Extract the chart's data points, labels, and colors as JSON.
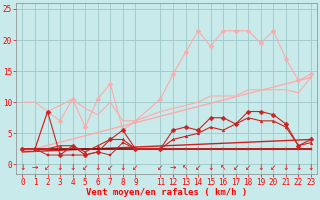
{
  "background_color": "#c8eaea",
  "grid_color": "#a0c8c8",
  "xlabel": "Vent moyen/en rafales ( km/h )",
  "ylabel_ticks": [
    0,
    5,
    10,
    15,
    20,
    25
  ],
  "ylim": [
    -1.5,
    26
  ],
  "xlim": [
    -0.5,
    23.5
  ],
  "x_ticks": [
    0,
    1,
    2,
    3,
    4,
    5,
    6,
    7,
    8,
    9,
    11,
    12,
    13,
    14,
    15,
    16,
    17,
    18,
    19,
    20,
    21,
    22,
    23
  ],
  "series": [
    {
      "x": [
        0,
        23
      ],
      "y": [
        2.0,
        14.0
      ],
      "color": "#ffaaaa",
      "marker": null,
      "lw": 1.0,
      "zorder": 2
    },
    {
      "x": [
        0,
        23
      ],
      "y": [
        2.0,
        4.0
      ],
      "color": "#cc2222",
      "marker": null,
      "lw": 1.0,
      "zorder": 2
    },
    {
      "x": [
        0,
        1,
        2,
        3,
        4,
        5,
        6,
        7,
        8,
        9,
        11,
        12,
        13,
        14,
        15,
        16,
        17,
        18,
        19,
        20,
        21,
        22,
        23
      ],
      "y": [
        2.5,
        2.5,
        8.5,
        7.0,
        10.5,
        6.0,
        10.5,
        13.0,
        5.5,
        7.0,
        10.5,
        14.5,
        18.0,
        21.5,
        19.0,
        21.5,
        21.5,
        21.5,
        19.5,
        21.5,
        17.0,
        13.5,
        14.5
      ],
      "color": "#ffaaaa",
      "marker": "D",
      "markersize": 2.5,
      "lw": 0.8,
      "zorder": 3
    },
    {
      "x": [
        0,
        1,
        2,
        3,
        4,
        5,
        6,
        7,
        8,
        9,
        11,
        12,
        13,
        14,
        15,
        16,
        17,
        18,
        19,
        20,
        21,
        22,
        23
      ],
      "y": [
        2.5,
        2.5,
        8.5,
        1.5,
        3.0,
        1.5,
        2.0,
        4.0,
        5.5,
        2.5,
        2.5,
        5.5,
        6.0,
        5.5,
        7.5,
        7.5,
        6.5,
        8.5,
        8.5,
        8.0,
        6.5,
        3.0,
        4.0
      ],
      "color": "#cc2222",
      "marker": "D",
      "markersize": 2.5,
      "lw": 0.8,
      "zorder": 3
    },
    {
      "x": [
        0,
        1,
        2,
        3,
        4,
        5,
        6,
        7,
        8,
        9,
        11,
        12,
        13,
        14,
        15,
        16,
        17,
        18,
        19,
        20,
        21,
        22,
        23
      ],
      "y": [
        2.5,
        2.5,
        1.5,
        1.5,
        1.5,
        1.5,
        2.0,
        1.5,
        3.5,
        2.5,
        2.5,
        2.5,
        2.5,
        2.5,
        2.5,
        2.5,
        2.5,
        2.5,
        2.5,
        2.5,
        2.5,
        2.5,
        2.5
      ],
      "color": "#cc2222",
      "marker": "s",
      "markersize": 1.8,
      "lw": 0.7,
      "zorder": 3
    },
    {
      "x": [
        0,
        1,
        2,
        3,
        4,
        5,
        6,
        7,
        8,
        9,
        11,
        12,
        13,
        14,
        15,
        16,
        17,
        18,
        19,
        20,
        21,
        22,
        23
      ],
      "y": [
        2.5,
        2.5,
        2.5,
        3.0,
        3.0,
        2.0,
        3.0,
        4.0,
        4.0,
        2.5,
        2.5,
        4.0,
        4.5,
        5.0,
        6.0,
        5.5,
        6.5,
        7.5,
        7.0,
        7.0,
        6.0,
        3.0,
        3.5
      ],
      "color": "#cc2222",
      "marker": "^",
      "markersize": 2.0,
      "lw": 0.8,
      "zorder": 3
    },
    {
      "x": [
        0,
        1,
        2,
        3,
        4,
        5,
        6,
        7,
        8,
        9,
        11,
        12,
        13,
        14,
        15,
        16,
        17,
        18,
        19,
        20,
        21,
        22,
        23
      ],
      "y": [
        2.5,
        2.5,
        2.5,
        2.5,
        2.5,
        2.5,
        2.5,
        2.5,
        2.5,
        2.5,
        2.5,
        2.5,
        2.5,
        2.5,
        2.5,
        2.5,
        2.5,
        2.5,
        2.5,
        2.5,
        2.5,
        2.5,
        2.5
      ],
      "color": "#880000",
      "marker": null,
      "lw": 1.2,
      "zorder": 2
    },
    {
      "x": [
        0,
        1,
        2,
        3,
        4,
        5,
        6,
        7,
        8,
        9,
        11,
        12,
        13,
        14,
        15,
        16,
        17,
        18,
        19,
        20,
        21,
        22,
        23
      ],
      "y": [
        10.0,
        10.0,
        8.5,
        9.5,
        10.5,
        9.0,
        8.0,
        10.0,
        7.0,
        7.0,
        8.5,
        9.0,
        9.5,
        10.0,
        11.0,
        11.0,
        11.0,
        12.0,
        12.0,
        12.0,
        12.0,
        11.5,
        14.0
      ],
      "color": "#ffaaaa",
      "marker": null,
      "lw": 0.8,
      "zorder": 2
    }
  ],
  "wind_arrows": [
    "↓",
    "→",
    "↙",
    "↓",
    "↓",
    "↙",
    "↓",
    "↙",
    "↓",
    "↙",
    "↙",
    "→",
    "↖",
    "↙",
    "↓",
    "↖",
    "↙",
    "↙",
    "↓",
    "↙",
    "↓",
    "↓",
    "↓"
  ],
  "arrow_fontsize": 5.5,
  "xlabel_fontsize": 6.5,
  "tick_fontsize": 5.5
}
